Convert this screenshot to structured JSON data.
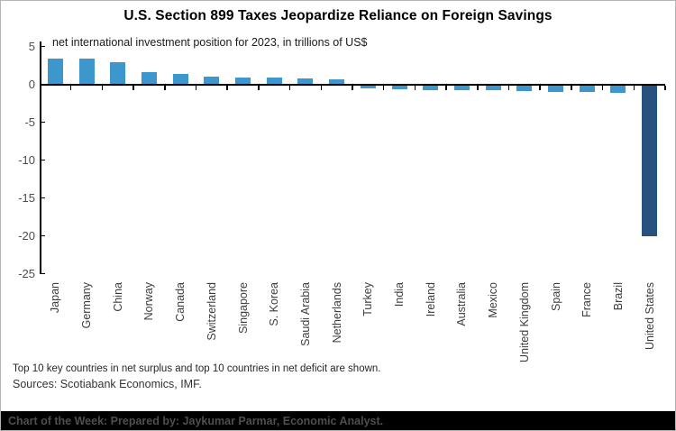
{
  "header": {
    "title": "U.S. Section 899 Taxes Jeopardize Reliance on Foreign Savings"
  },
  "chart_data": {
    "type": "bar",
    "title": "U.S. Section 899 Taxes Jeopardize Reliance on Foreign Savings",
    "subtitle": "net international investment position for 2023, in trillions of US$",
    "categories": [
      "Japan",
      "Germany",
      "China",
      "Norway",
      "Canada",
      "Switzerland",
      "Singapore",
      "S. Korea",
      "Saudi Arabia",
      "Netherlands",
      "Turkey",
      "India",
      "Ireland",
      "Australia",
      "Mexico",
      "United Kingdom",
      "Spain",
      "France",
      "Brazil",
      "United States"
    ],
    "values": [
      3.4,
      3.35,
      2.95,
      1.6,
      1.35,
      1.0,
      0.95,
      0.85,
      0.8,
      0.7,
      -0.4,
      -0.5,
      -0.6,
      -0.65,
      -0.7,
      -0.8,
      -0.85,
      -0.9,
      -1.0,
      -19.9
    ],
    "ylabel": "",
    "xlabel": "",
    "ylim": [
      -25,
      5
    ],
    "yticks": [
      5,
      0,
      -5,
      -10,
      -15,
      -20,
      -25
    ],
    "grid": false,
    "legend": "none",
    "bar_color": "#3e97cc",
    "highlight_color": "#27517e",
    "highlight_category": "United States"
  },
  "footnotes": {
    "note": "Top 10 key countries in net surplus and top 10 countries in net deficit are shown.",
    "sources": "Sources: Scotiabank Economics, IMF."
  },
  "footer": {
    "banner": "Chart of the Week: Prepared by: Jaykumar Parmar, Economic Analyst."
  }
}
